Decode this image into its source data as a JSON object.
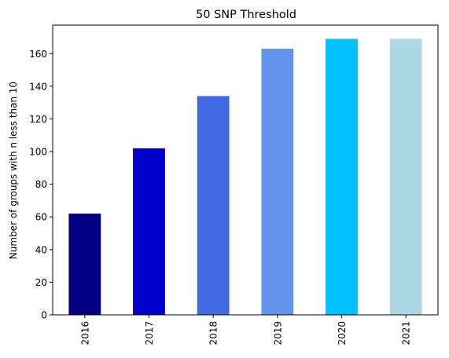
{
  "chart_data": {
    "type": "bar",
    "title": "50 SNP Threshold",
    "xlabel": "",
    "ylabel": "Number of groups with n less than 10",
    "categories": [
      "2016",
      "2017",
      "2018",
      "2019",
      "2020",
      "2021"
    ],
    "values": [
      62,
      102,
      134,
      163,
      169,
      169
    ],
    "colors": [
      "#000080",
      "#0000CD",
      "#4169E1",
      "#6495ED",
      "#00BFFF",
      "#ADD8E6"
    ],
    "ylim": [
      0,
      177.45
    ],
    "yticks": [
      0,
      20,
      40,
      60,
      80,
      100,
      120,
      140,
      160
    ],
    "grid": false,
    "legend": "none"
  }
}
